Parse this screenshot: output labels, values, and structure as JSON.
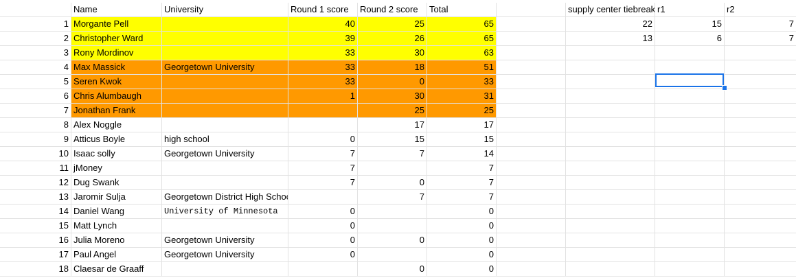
{
  "header": {
    "name": "Name",
    "university": "University",
    "round1": "Round 1 score",
    "round2": "Round 2 score",
    "total": "Total",
    "tiebreak": "supply center tiebreak",
    "r1": "r1",
    "r2": "r2"
  },
  "rows": [
    {
      "num": "1",
      "name": "Morgante Pell",
      "university": "",
      "r1": "40",
      "r2": "25",
      "total": "65",
      "hl": "yellow"
    },
    {
      "num": "2",
      "name": "Christopher Ward",
      "university": "",
      "r1": "39",
      "r2": "26",
      "total": "65",
      "hl": "yellow"
    },
    {
      "num": "3",
      "name": "Rony Mordinov",
      "university": "",
      "r1": "33",
      "r2": "30",
      "total": "63",
      "hl": "yellow"
    },
    {
      "num": "4",
      "name": "Max Massick",
      "university": "Georgetown University",
      "r1": "33",
      "r2": "18",
      "total": "51",
      "hl": "orange"
    },
    {
      "num": "5",
      "name": "Seren Kwok",
      "university": "",
      "r1": "33",
      "r2": "0",
      "total": "33",
      "hl": "orange"
    },
    {
      "num": "6",
      "name": "Chris Alumbaugh",
      "university": "",
      "r1": "1",
      "r2": "30",
      "total": "31",
      "hl": "orange"
    },
    {
      "num": "7",
      "name": "Jonathan Frank",
      "university": "",
      "r1": "",
      "r2": "25",
      "total": "25",
      "hl": "orange"
    },
    {
      "num": "8",
      "name": "Alex Noggle",
      "university": "",
      "r1": "",
      "r2": "17",
      "total": "17",
      "hl": ""
    },
    {
      "num": "9",
      "name": "Atticus Boyle",
      "university": "high school",
      "r1": "0",
      "r2": "15",
      "total": "15",
      "hl": ""
    },
    {
      "num": "10",
      "name": "Isaac solly",
      "university": "Georgetown University",
      "r1": "7",
      "r2": "7",
      "total": "14",
      "hl": ""
    },
    {
      "num": "11",
      "name": "jMoney",
      "university": "",
      "r1": "7",
      "r2": "",
      "total": "7",
      "hl": ""
    },
    {
      "num": "12",
      "name": "Dug Swank",
      "university": "",
      "r1": "7",
      "r2": "0",
      "total": "7",
      "hl": ""
    },
    {
      "num": "13",
      "name": "Jaromir Sulja",
      "university": "Georgetown District High School",
      "r1": "",
      "r2": "7",
      "total": "7",
      "hl": ""
    },
    {
      "num": "14",
      "name": "Daniel Wang",
      "university": "University of Minnesota",
      "r1": "0",
      "r2": "",
      "total": "0",
      "hl": "",
      "mono": true
    },
    {
      "num": "15",
      "name": "Matt Lynch",
      "university": "",
      "r1": "0",
      "r2": "",
      "total": "0",
      "hl": ""
    },
    {
      "num": "16",
      "name": "Julia Moreno",
      "university": "Georgetown University",
      "r1": "0",
      "r2": "0",
      "total": "0",
      "hl": ""
    },
    {
      "num": "17",
      "name": "Paul Angel",
      "university": "Georgetown University",
      "r1": "0",
      "r2": "",
      "total": "0",
      "hl": ""
    },
    {
      "num": "18",
      "name": "Claesar de Graaff",
      "university": "",
      "r1": "",
      "r2": "0",
      "total": "0",
      "hl": ""
    }
  ],
  "tiebreak": [
    {
      "sc": "22",
      "r1": "15",
      "r2": "7"
    },
    {
      "sc": "13",
      "r1": "6",
      "r2": "7"
    }
  ],
  "colors": {
    "yellow": "#ffff00",
    "orange": "#ff9900",
    "selection": "#1a73e8"
  }
}
